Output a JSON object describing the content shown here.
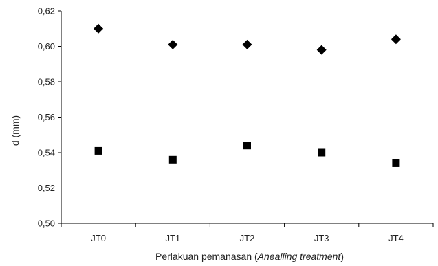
{
  "chart_data": {
    "type": "scatter",
    "title": "",
    "xlabel": "Perlakuan pemanasan (Anealling treatment)",
    "xlabel_parts": [
      {
        "text": "Perlakuan pemanasan (",
        "italic": false
      },
      {
        "text": "Anealling treatment",
        "italic": true
      },
      {
        "text": ")",
        "italic": false
      }
    ],
    "ylabel": "d (mm)",
    "categories": [
      "JT0",
      "JT1",
      "JT2",
      "JT3",
      "JT4"
    ],
    "ylim": [
      0.5,
      0.62
    ],
    "yticks": [
      0.5,
      0.52,
      0.54,
      0.56,
      0.58,
      0.6,
      0.62
    ],
    "ytick_labels": [
      "0,50",
      "0,52",
      "0,54",
      "0,56",
      "0,58",
      "0,60",
      "0,62"
    ],
    "grid": false,
    "legend": "none",
    "series": [
      {
        "marker": "diamond",
        "color": "#000000",
        "values": [
          0.61,
          0.601,
          0.601,
          0.598,
          0.604
        ]
      },
      {
        "marker": "square",
        "color": "#000000",
        "values": [
          0.541,
          0.536,
          0.544,
          0.54,
          0.534
        ]
      }
    ]
  }
}
